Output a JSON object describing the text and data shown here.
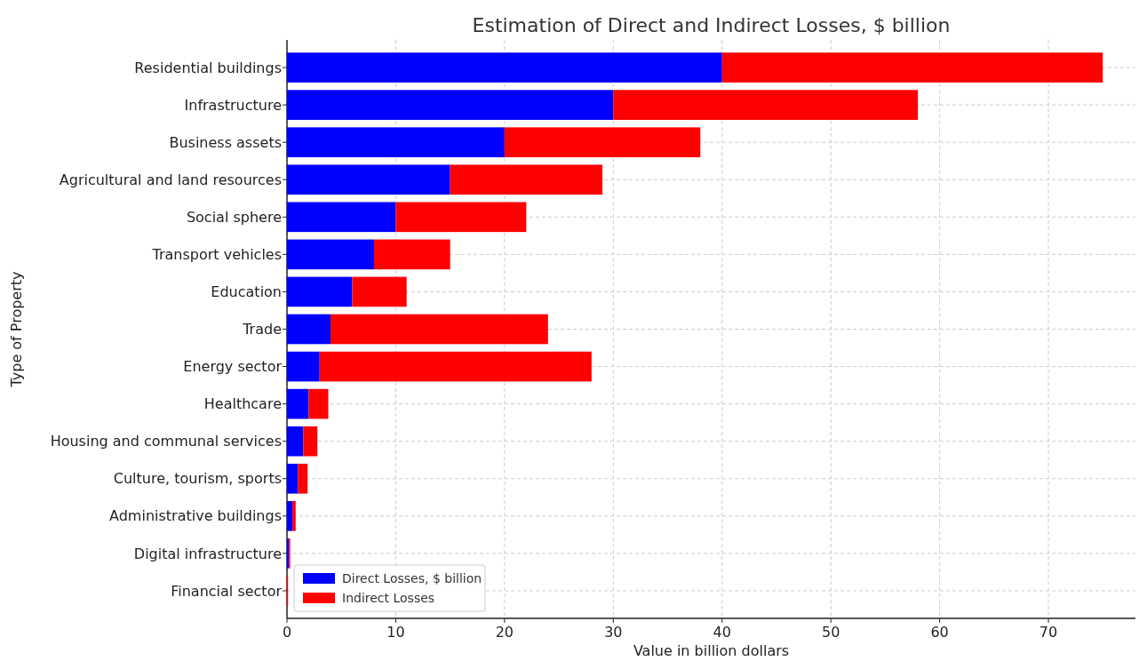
{
  "chart_data": {
    "type": "bar",
    "orientation": "horizontal",
    "stacked": true,
    "title": "Estimation of Direct and Indirect Losses, $ billion",
    "xlabel": "Value in billion dollars",
    "ylabel": "Type of Property",
    "categories": [
      "Residential buildings",
      "Infrastructure",
      "Business assets",
      "Agricultural and land resources",
      "Social sphere",
      "Transport vehicles",
      "Education",
      "Trade",
      "Energy sector",
      "Healthcare",
      "Housing and communal services",
      "Culture, tourism, sports",
      "Administrative buildings",
      "Digital infrastructure",
      "Financial sector"
    ],
    "series": [
      {
        "name": "Direct Losses, $ billion",
        "color": "#0000ff",
        "values": [
          40,
          30,
          20,
          15,
          10,
          8,
          6,
          4,
          3,
          2,
          1.5,
          1,
          0.5,
          0.2,
          null
        ]
      },
      {
        "name": "Indirect Losses",
        "color": "#ff0000",
        "values": [
          35,
          28,
          18,
          14,
          12,
          7,
          5,
          20,
          25,
          1.8,
          1.3,
          0.9,
          0.3,
          0.1,
          0.1
        ]
      }
    ],
    "xlim": [
      0,
      78
    ],
    "xticks": [
      0,
      10,
      20,
      30,
      40,
      50,
      60,
      70
    ],
    "grid": true,
    "legend": "bottom left"
  }
}
